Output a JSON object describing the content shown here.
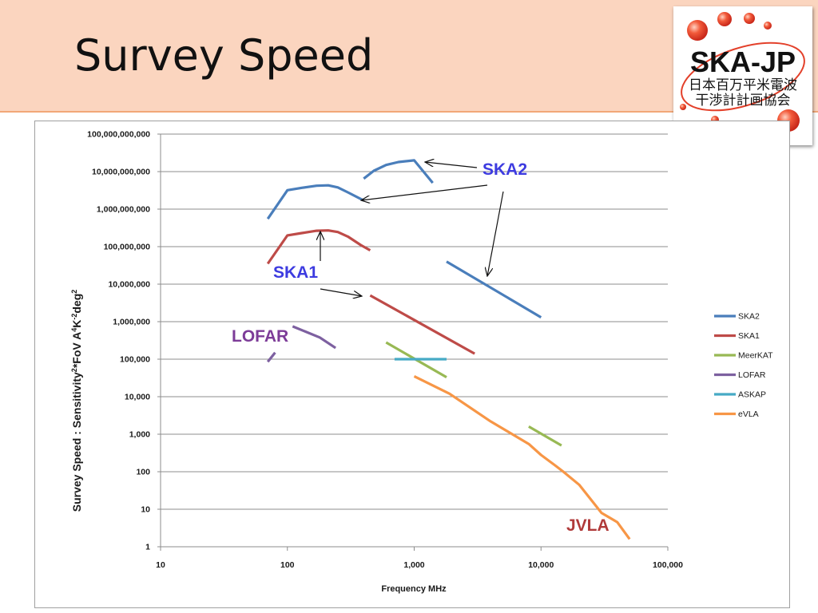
{
  "slide": {
    "title": "Survey Speed"
  },
  "logo": {
    "name": "SKA-JP",
    "subtitle_line1": "日本百万平米電波",
    "subtitle_line2": "干渉計計画協会"
  },
  "chart_data": {
    "type": "line",
    "xlabel": "Frequency MHz",
    "ylabel": "Survey Speed : Sensitivity²*FoV  A⁴K⁻²deg²",
    "x_scale": "log",
    "y_scale": "log",
    "xlim": [
      10,
      100000
    ],
    "ylim": [
      1,
      100000000000
    ],
    "x_ticks": [
      {
        "value": 10,
        "label": "10"
      },
      {
        "value": 100,
        "label": "100"
      },
      {
        "value": 1000,
        "label": "1,000"
      },
      {
        "value": 10000,
        "label": "10,000"
      },
      {
        "value": 100000,
        "label": "100,000"
      }
    ],
    "y_ticks": [
      {
        "value": 1,
        "label": "1"
      },
      {
        "value": 10,
        "label": "10"
      },
      {
        "value": 100,
        "label": "100"
      },
      {
        "value": 1000,
        "label": "1,000"
      },
      {
        "value": 10000,
        "label": "10,000"
      },
      {
        "value": 100000,
        "label": "100,000"
      },
      {
        "value": 1000000,
        "label": "1,000,000"
      },
      {
        "value": 10000000,
        "label": "10,000,000"
      },
      {
        "value": 100000000,
        "label": "100,000,000"
      },
      {
        "value": 1000000000,
        "label": "1,000,000,000"
      },
      {
        "value": 10000000000,
        "label": "10,000,000,000"
      },
      {
        "value": 100000000000,
        "label": "100,000,000,000"
      }
    ],
    "grid": "horizontal",
    "legend_position": "right",
    "series": [
      {
        "name": "SKA2",
        "color": "#4a7ebb",
        "segments": [
          [
            [
              70,
              550000000
            ],
            [
              100,
              3200000000
            ],
            [
              130,
              3700000000
            ],
            [
              170,
              4200000000
            ],
            [
              210,
              4300000000
            ],
            [
              250,
              3800000000
            ],
            [
              300,
              2800000000
            ],
            [
              400,
              1700000000
            ]
          ],
          [
            [
              400,
              6500000000
            ],
            [
              480,
              10500000000
            ],
            [
              600,
              15000000000
            ],
            [
              750,
              18000000000
            ],
            [
              1000,
              20000000000
            ],
            [
              1400,
              5000000000
            ]
          ],
          [
            [
              1800,
              40000000
            ],
            [
              10000,
              1300000
            ]
          ]
        ]
      },
      {
        "name": "SKA1",
        "color": "#be4b48",
        "segments": [
          [
            [
              70,
              35000000
            ],
            [
              100,
              200000000
            ],
            [
              130,
              230000000
            ],
            [
              170,
              265000000
            ],
            [
              210,
              270000000
            ],
            [
              250,
              245000000
            ],
            [
              300,
              185000000
            ],
            [
              380,
              110000000
            ],
            [
              450,
              80000000
            ]
          ],
          [
            [
              450,
              5000000
            ],
            [
              3000,
              140000
            ]
          ]
        ]
      },
      {
        "name": "MeerKAT",
        "color": "#98b954",
        "segments": [
          [
            [
              600,
              280000
            ],
            [
              1800,
              33000
            ]
          ],
          [
            [
              8000,
              1600
            ],
            [
              14500,
              500
            ]
          ]
        ]
      },
      {
        "name": "LOFAR",
        "color": "#7d60a0",
        "segments": [
          [
            [
              70,
              85000
            ],
            [
              80,
              150000
            ]
          ],
          [
            [
              110,
              750000
            ],
            [
              180,
              380000
            ],
            [
              240,
              200000
            ]
          ]
        ]
      },
      {
        "name": "ASKAP",
        "color": "#46aac5",
        "segments": [
          [
            [
              700,
              100000
            ],
            [
              1800,
              100000
            ]
          ]
        ]
      },
      {
        "name": "eVLA",
        "color": "#f79646",
        "segments": [
          [
            [
              1000,
              35000
            ],
            [
              1900,
              12000
            ],
            [
              4000,
              2200
            ],
            [
              8000,
              550
            ],
            [
              10000,
              280
            ],
            [
              13000,
              145
            ],
            [
              15000,
              100
            ],
            [
              20000,
              45
            ],
            [
              30000,
              8
            ],
            [
              40000,
              4.5
            ],
            [
              50000,
              1.6
            ]
          ]
        ]
      }
    ],
    "annotations": [
      {
        "text": "SKA2",
        "color": "#3d3be0"
      },
      {
        "text": "SKA1",
        "color": "#3d3be0"
      },
      {
        "text": "LOFAR",
        "color": "#7d3c98"
      },
      {
        "text": "JVLA",
        "color": "#b03a3a"
      }
    ]
  }
}
